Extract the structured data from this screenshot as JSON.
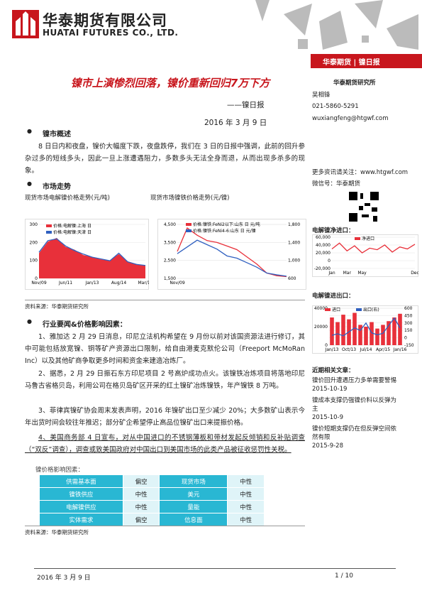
{
  "header": {
    "company_cn": "华泰期货有限公司",
    "company_en": "HUATAI FUTURES CO., LTD.",
    "banner": "华泰期货 | 镍日报"
  },
  "title": "镍市上演惨烈回落，镍价重新回归7万下方",
  "subtitle": "——镍日报",
  "date": "2016 年 3 月 9 日",
  "sidebar": {
    "institute": "华泰期货研究所",
    "analyst": "吴相锋",
    "phone": "021-5860-5291",
    "email": "wuxiangfeng@htgwf.com",
    "follow": "更多资讯请关注：www.htgwf.com",
    "wechat": "微信号：华泰期货",
    "net_import_title": "电解镍净进口：",
    "trade_title": "电解镍进出口：",
    "related_title": "近期相关文章：",
    "articles": [
      {
        "title": "镍价回升遭遇压力多单需要警惕",
        "date": "2015-10-19"
      },
      {
        "title": "镍成本支撑仍强镍价料以反弹为主",
        "date": "2015-10-9"
      },
      {
        "title": "镍价短期支撑仍在但反弹空间依然有限",
        "date": "2015-9-28"
      }
    ]
  },
  "sections": [
    {
      "heading": "镍市概述",
      "paragraphs": [
        "8 日日内和夜盘，镍价大幅度下跌，夜盘跌停，我们在 3 日的日报中强调，此前的回升参杂过多的短线多头，因此一旦上涨遭遇阻力，多数多头无法全身而退，从而出现多杀多的现象。"
      ]
    },
    {
      "heading": "市场走势",
      "paragraphs": []
    },
    {
      "heading": "行业要闻&价格影响因素：",
      "paragraphs": [
        "1、雅加达 2 月 29 日消息，印尼立法机构希望在 9 月份以前对该国资源法进行修订，其中可能包括放宽镍、铜等矿产资源出口限制，给自由港麦克默伦公司（Freeport McMoRan Inc）以及其他矿商争取更多时间和资金来建造冶炼厂。",
        "2、据悉，2 月 29 日振石东方印尼项目 2 号高炉成功点火。该镍铁冶炼项目将落地印尼马鲁古省格贝岛，利用公司在格贝岛矿区开采的红土镍矿冶炼镍铁，年产镍铁 8 万吨。",
        "3、菲律宾镍矿协会周末发表声明，2016 年镍矿出口至少减少 20%；大多数矿山表示今年出货时间会较往年推迟；部分矿企希望停止高品位镍矿出口来提振价格。",
        "4、美国商务部 4 日宣布，对从中国进口的不锈钢薄板和带材发起反倾销和反补贴调查（“双反”调查），调查或致美国政府对中国出口到美国市场的此类产品被征收惩罚性关税。"
      ]
    }
  ],
  "chart_captions": [
    "现货市场电解镍价格走势(元/吨)",
    "现货市场镍铁价格走势(元/镍)"
  ],
  "source": "资料来源：华泰期货研究所",
  "table": {
    "caption": "镍价格影响因素：",
    "rows": [
      [
        "供需基本面",
        "偏空",
        "现货市场",
        "中性"
      ],
      [
        "镍铁供应",
        "中性",
        "美元",
        "中性"
      ],
      [
        "电解镍供应",
        "中性",
        "量能",
        "中性"
      ],
      [
        "实体需求",
        "偏空",
        "信息面",
        "中性"
      ]
    ]
  },
  "footer": {
    "date": "2016 年 3 月 9 日",
    "page": "1 / 10"
  },
  "chart_data": [
    {
      "type": "line",
      "categories": [
        "Nov/09",
        null,
        null,
        "Jun/11",
        null,
        null,
        "Jan/13",
        null,
        null,
        "Aug/14",
        null,
        null,
        "Mar/16"
      ],
      "ylim": [
        0,
        300
      ],
      "yticks": [
        0,
        100,
        200,
        300
      ],
      "series": [
        {
          "name": "价格:电解镍:上海 日",
          "color": "#e8303a",
          "style": "area",
          "values": [
            140,
            205,
            225,
            175,
            160,
            130,
            120,
            105,
            100,
            135,
            95,
            80,
            70
          ]
        },
        {
          "name": "价格:电解镍:天津 日",
          "color": "#3060c0",
          "style": "line",
          "values": [
            145,
            210,
            220,
            180,
            155,
            135,
            118,
            108,
            98,
            140,
            92,
            78,
            72
          ]
        }
      ]
    },
    {
      "type": "line",
      "categories": [
        "Nov/09",
        null,
        null,
        null,
        null,
        null,
        null,
        null,
        null,
        null,
        null,
        null
      ],
      "ylim": [
        1500,
        4500
      ],
      "yticks": [
        {
          "value": 1500,
          "label": "1,500"
        },
        {
          "value": 2500,
          "label": "2,500"
        },
        {
          "value": 3500,
          "label": "3,500"
        },
        {
          "value": 4500,
          "label": "4,500"
        }
      ],
      "y2lim": [
        600,
        1800
      ],
      "y2ticks": [
        600,
        {
          "value": 1000,
          "label": "1,000"
        },
        {
          "value": 1400,
          "label": "1,400"
        },
        {
          "value": 1800,
          "label": "1,800"
        }
      ],
      "series": [
        {
          "name": "价格:镍铁:FeNi2以下:山东 日 元/吨",
          "color": "#e8303a",
          "style": "line",
          "values": [
            3000,
            4300,
            3900,
            3600,
            3500,
            3300,
            3100,
            2700,
            2300,
            1800,
            1650,
            1600
          ]
        },
        {
          "name": "价格:镍铁:FeNi4-6:山东 日 元/镍",
          "color": "#3060c0",
          "style": "line",
          "axis": "y2",
          "values": [
            1150,
            1300,
            1450,
            1350,
            1250,
            1100,
            1050,
            950,
            850,
            720,
            680,
            650
          ]
        }
      ]
    },
    {
      "type": "line",
      "categories": [
        "Jan",
        null,
        "Mar",
        null,
        "May",
        null,
        null,
        null,
        null,
        null,
        null,
        "Dec"
      ],
      "ylim": [
        -20000,
        60000
      ],
      "yticks": [
        {
          "value": -20000,
          "label": "-20,000"
        },
        0,
        {
          "value": 20000,
          "label": "20,000"
        },
        {
          "value": 40000,
          "label": "40,000"
        },
        {
          "value": 60000,
          "label": "60,000"
        }
      ],
      "series": [
        {
          "name": "净进口",
          "color": "#e8303a",
          "style": "line",
          "values": [
            30000,
            45000,
            25000,
            38000,
            20000,
            32000,
            28000,
            40000,
            22000,
            35000,
            30000,
            42000
          ]
        }
      ]
    },
    {
      "type": "bar",
      "categories": [
        "Jan/13",
        null,
        null,
        "Oct/13",
        null,
        null,
        "Jul/14",
        null,
        null,
        "Apr/15",
        null,
        null,
        "Jan/16"
      ],
      "ylim": [
        0,
        40000
      ],
      "yticks": [
        0,
        20000,
        40000
      ],
      "y2lim": [
        -150,
        600
      ],
      "y2ticks": [
        -150,
        0,
        150,
        300,
        450,
        600
      ],
      "series": [
        {
          "name": "进口",
          "color": "#e8303a",
          "style": "bar",
          "values": [
            30000,
            25000,
            33000,
            28000,
            35000,
            22000,
            20000,
            25000,
            18000,
            22000,
            26000,
            30000,
            34000
          ]
        },
        {
          "name": "出口(右)",
          "color": "#3060c0",
          "style": "line",
          "axis": "y2",
          "values": [
            50,
            80,
            40,
            120,
            200,
            150,
            300,
            100,
            60,
            90,
            250,
            400,
            200
          ]
        }
      ]
    }
  ]
}
